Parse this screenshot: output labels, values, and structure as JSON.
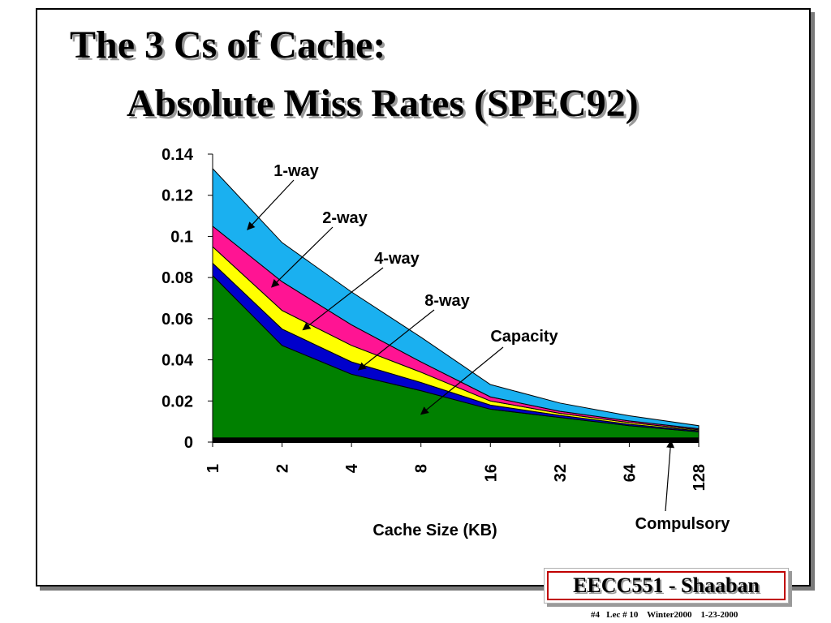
{
  "slide": {
    "title_line1": "The 3 Cs of Cache:",
    "title_line2": "Absolute Miss Rates (SPEC92)",
    "footer_label": "EECC551 - Shaaban",
    "footer_note": "#4   Lec # 10    Winter2000    1-23-2000"
  },
  "colors": {
    "compulsory": "#000000",
    "capacity": "#008000",
    "8-way": "#0000cc",
    "4-way": "#ffff00",
    "2-way": "#ff1493",
    "1-way": "#1ab0f0"
  },
  "chart_data": {
    "type": "area",
    "stacked": true,
    "title": "",
    "xlabel": "Cache Size (KB)",
    "ylabel": "",
    "ylim": [
      0,
      0.14
    ],
    "yticks": [
      "0",
      "0.02",
      "0.04",
      "0.06",
      "0.08",
      "0.1",
      "0.12",
      "0.14"
    ],
    "categories": [
      "1",
      "2",
      "4",
      "8",
      "16",
      "32",
      "64",
      "128"
    ],
    "series": [
      {
        "name": "Compulsory",
        "values": [
          0.002,
          0.002,
          0.002,
          0.002,
          0.002,
          0.002,
          0.002,
          0.002
        ]
      },
      {
        "name": "Capacity",
        "values": [
          0.079,
          0.045,
          0.031,
          0.023,
          0.014,
          0.01,
          0.006,
          0.003
        ]
      },
      {
        "name": "8-way",
        "values": [
          0.006,
          0.008,
          0.006,
          0.004,
          0.002,
          0.001,
          0.0007,
          0.0005
        ]
      },
      {
        "name": "4-way",
        "values": [
          0.008,
          0.009,
          0.008,
          0.005,
          0.002,
          0.001,
          0.0008,
          0.0005
        ]
      },
      {
        "name": "2-way",
        "values": [
          0.01,
          0.014,
          0.01,
          0.005,
          0.002,
          0.001,
          0.0008,
          0.0005
        ]
      },
      {
        "name": "1-way",
        "values": [
          0.028,
          0.019,
          0.016,
          0.012,
          0.006,
          0.004,
          0.0025,
          0.0015
        ]
      }
    ],
    "annotations": [
      {
        "label": "1-way",
        "series": "1-way"
      },
      {
        "label": "2-way",
        "series": "2-way"
      },
      {
        "label": "4-way",
        "series": "4-way"
      },
      {
        "label": "8-way",
        "series": "8-way"
      },
      {
        "label": "Capacity",
        "series": "Capacity"
      },
      {
        "label": "Compulsory",
        "series": "Compulsory"
      }
    ]
  }
}
